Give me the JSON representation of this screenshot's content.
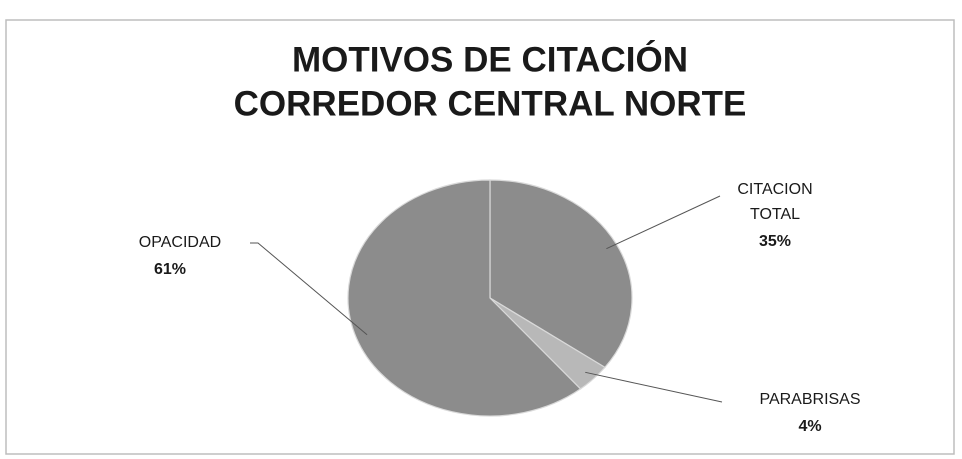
{
  "chart_data": {
    "type": "pie",
    "title": [
      "MOTIVOS DE CITACIÓN",
      "CORREDOR CENTRAL NORTE"
    ],
    "categories": [
      "CITACION TOTAL",
      "PARABRISAS",
      "OPACIDAD"
    ],
    "values": [
      35,
      4,
      61
    ],
    "value_labels": [
      "35%",
      "4%",
      "61%"
    ],
    "colors": [
      "#8c8c8c",
      "#b8b8b8",
      "#8c8c8c"
    ]
  }
}
